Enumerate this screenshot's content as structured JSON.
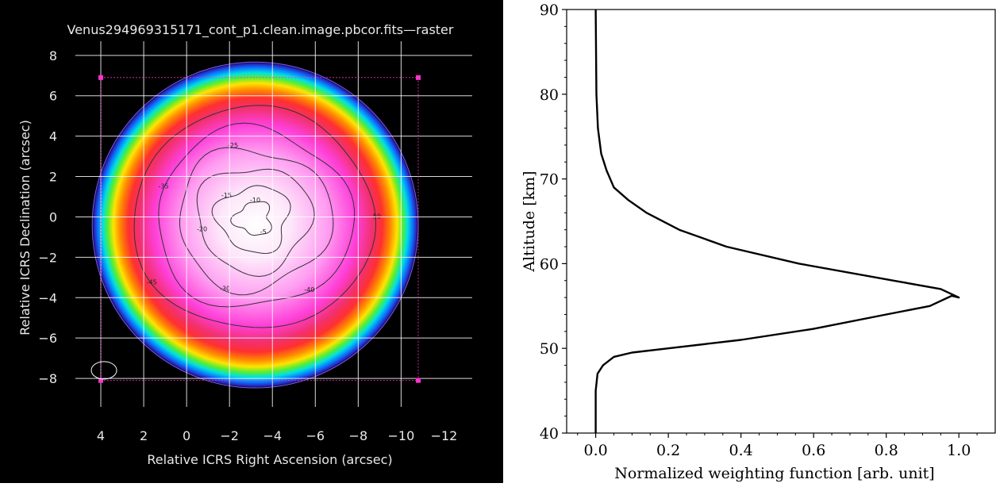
{
  "colors": {
    "left_background": "#000000",
    "grid": "#ffffff",
    "contour": "#333333",
    "frame_marker": "#ff33cc",
    "right_line": "#000000"
  },
  "chart_data": [
    {
      "type": "heatmap",
      "title": "Venus294969315171_cont_p1.clean.image.pbcor.fits—raster",
      "xlabel": "Relative ICRS Right Ascension (arcsec)",
      "ylabel": "Relative ICRS Declination (arcsec)",
      "x_ticks": [
        "4",
        "2",
        "0",
        "−2",
        "−4",
        "−6",
        "−8",
        "−10",
        "−12"
      ],
      "x_tick_values": [
        4,
        2,
        0,
        -2,
        -4,
        -6,
        -8,
        -10,
        -12
      ],
      "y_ticks": [
        "8",
        "6",
        "4",
        "2",
        "0",
        "−2",
        "−4",
        "−6",
        "−8"
      ],
      "y_tick_values": [
        8,
        6,
        4,
        2,
        0,
        -2,
        -4,
        -6,
        -8
      ],
      "xlim": [
        5,
        -13.5
      ],
      "ylim": [
        -10,
        8.7
      ],
      "grid": true,
      "disk_center": [
        -3.2,
        -0.4
      ],
      "disk_radius": 7.6,
      "colormap": "rainbow (dark blue rim to magenta/white center)",
      "beam_ellipse_center": [
        4.0,
        -7.6
      ],
      "frame_corners": [
        [
          4,
          6.9
        ],
        [
          -10.8,
          6.9
        ],
        [
          -10.8,
          -8.1
        ],
        [
          4,
          -8.1
        ]
      ],
      "contour_labels": [
        "-50",
        "-45",
        "-40",
        "-35",
        "-30",
        "-25",
        "-20",
        "-15",
        "-10",
        "-5"
      ]
    },
    {
      "type": "line",
      "xlabel": "Normalized weighting function [arb. unit]",
      "ylabel": "Altitude [km]",
      "xlim": [
        -0.08,
        1.1
      ],
      "ylim": [
        40,
        90
      ],
      "x_ticks": [
        "0.0",
        "0.2",
        "0.4",
        "0.6",
        "0.8",
        "1.0"
      ],
      "x_tick_values": [
        0.0,
        0.2,
        0.4,
        0.6,
        0.8,
        1.0
      ],
      "y_ticks": [
        "40",
        "50",
        "60",
        "70",
        "80",
        "90"
      ],
      "y_tick_values": [
        40,
        50,
        60,
        70,
        80,
        90
      ],
      "grid": false,
      "series": [
        {
          "x": [
            0.0,
            0.0,
            0.005,
            0.02,
            0.05,
            0.1,
            0.2,
            0.4,
            0.6,
            0.8,
            0.92,
            0.98,
            1.0,
            0.95,
            0.82,
            0.56,
            0.36,
            0.23,
            0.14,
            0.09,
            0.05,
            0.03,
            0.015,
            0.006,
            0.002,
            0.0
          ],
          "y": [
            40,
            45,
            47,
            48,
            49,
            49.5,
            50,
            51,
            52.3,
            54,
            55,
            56.2,
            56,
            57,
            58,
            60,
            62,
            64,
            66,
            67.5,
            69,
            71,
            73,
            76,
            80,
            90
          ]
        }
      ]
    }
  ]
}
